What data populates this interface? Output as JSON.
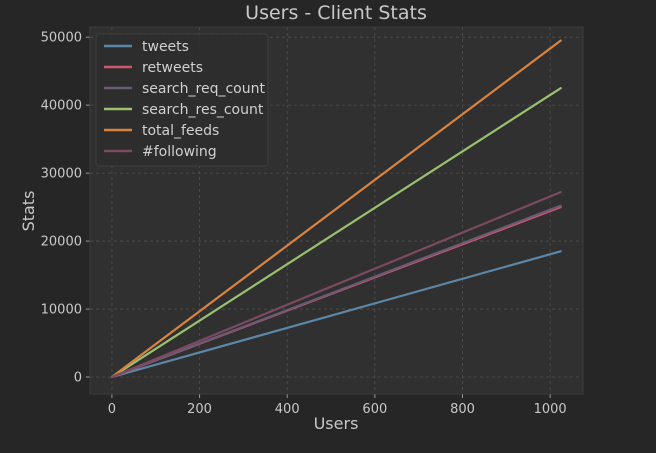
{
  "chart_data": {
    "type": "line",
    "title": "Users - Client Stats",
    "xlabel": "Users",
    "ylabel": "Stats",
    "xlim": [
      -50,
      1075
    ],
    "ylim": [
      -2500,
      51500
    ],
    "xticks": [
      0,
      200,
      400,
      600,
      800,
      1000
    ],
    "yticks": [
      0,
      10000,
      20000,
      30000,
      40000,
      50000
    ],
    "grid": true,
    "legend_position": "top-left",
    "x": [
      0,
      1024
    ],
    "series": [
      {
        "name": "tweets",
        "color": "#5b86a6",
        "values": [
          0,
          18500
        ]
      },
      {
        "name": "retweets",
        "color": "#d0566c",
        "values": [
          0,
          25000
        ]
      },
      {
        "name": "search_req_count",
        "color": "#6a5a75",
        "values": [
          0,
          25200
        ]
      },
      {
        "name": "search_res_count",
        "color": "#99c16f",
        "values": [
          0,
          42500
        ]
      },
      {
        "name": "total_feeds",
        "color": "#d88340",
        "values": [
          0,
          49500
        ]
      },
      {
        "name": "#following",
        "color": "#7c4a60",
        "values": [
          0,
          27200
        ]
      }
    ]
  },
  "colors": {
    "background": "#262626",
    "plot_area": "#303030",
    "grid": "#505050",
    "text": "#c8c8c8"
  }
}
